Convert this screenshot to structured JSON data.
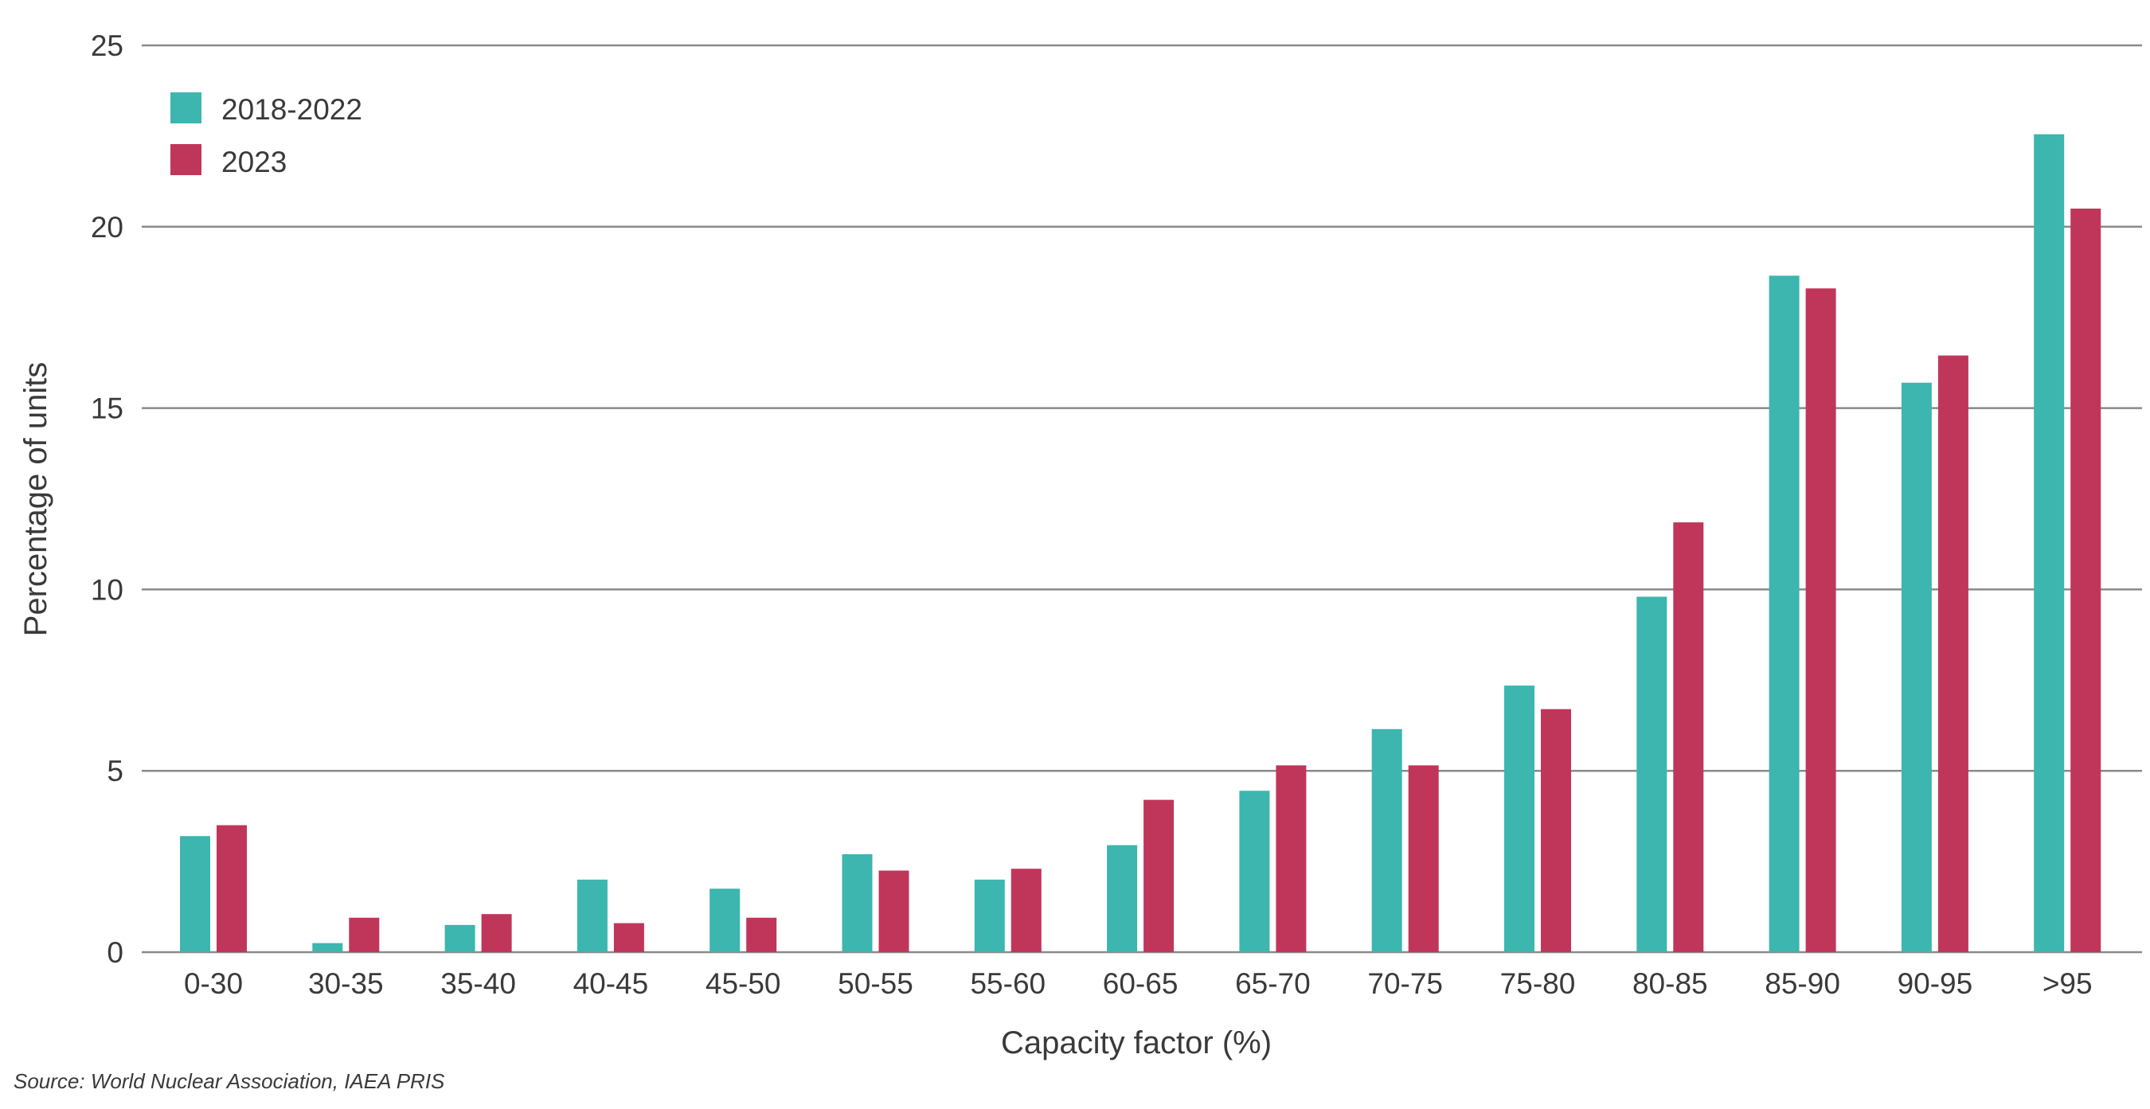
{
  "chart_data": {
    "type": "bar",
    "title": "",
    "xlabel": "Capacity factor (%)",
    "ylabel": "Percentage of units",
    "categories": [
      "0-30",
      "30-35",
      "35-40",
      "40-45",
      "45-50",
      "50-55",
      "55-60",
      "60-65",
      "65-70",
      "70-75",
      "75-80",
      "80-85",
      "85-90",
      "90-95",
      ">95"
    ],
    "series": [
      {
        "name": "2018-2022",
        "color": "#3cb6ae",
        "values": [
          3.2,
          0.25,
          0.75,
          2.0,
          1.75,
          2.7,
          2.0,
          2.95,
          4.45,
          6.15,
          7.35,
          9.8,
          18.65,
          15.7,
          22.55
        ]
      },
      {
        "name": "2023",
        "color": "#c0365a",
        "values": [
          3.5,
          0.95,
          1.05,
          0.8,
          0.95,
          2.25,
          2.3,
          4.2,
          5.15,
          5.15,
          6.7,
          11.85,
          18.3,
          16.45,
          20.5
        ]
      }
    ],
    "ylim": [
      0,
      25
    ],
    "yticks": [
      0,
      5,
      10,
      15,
      20,
      25
    ],
    "grid": true,
    "legend_position": "top-left",
    "source": "Source: World Nuclear Association, IAEA PRIS"
  }
}
